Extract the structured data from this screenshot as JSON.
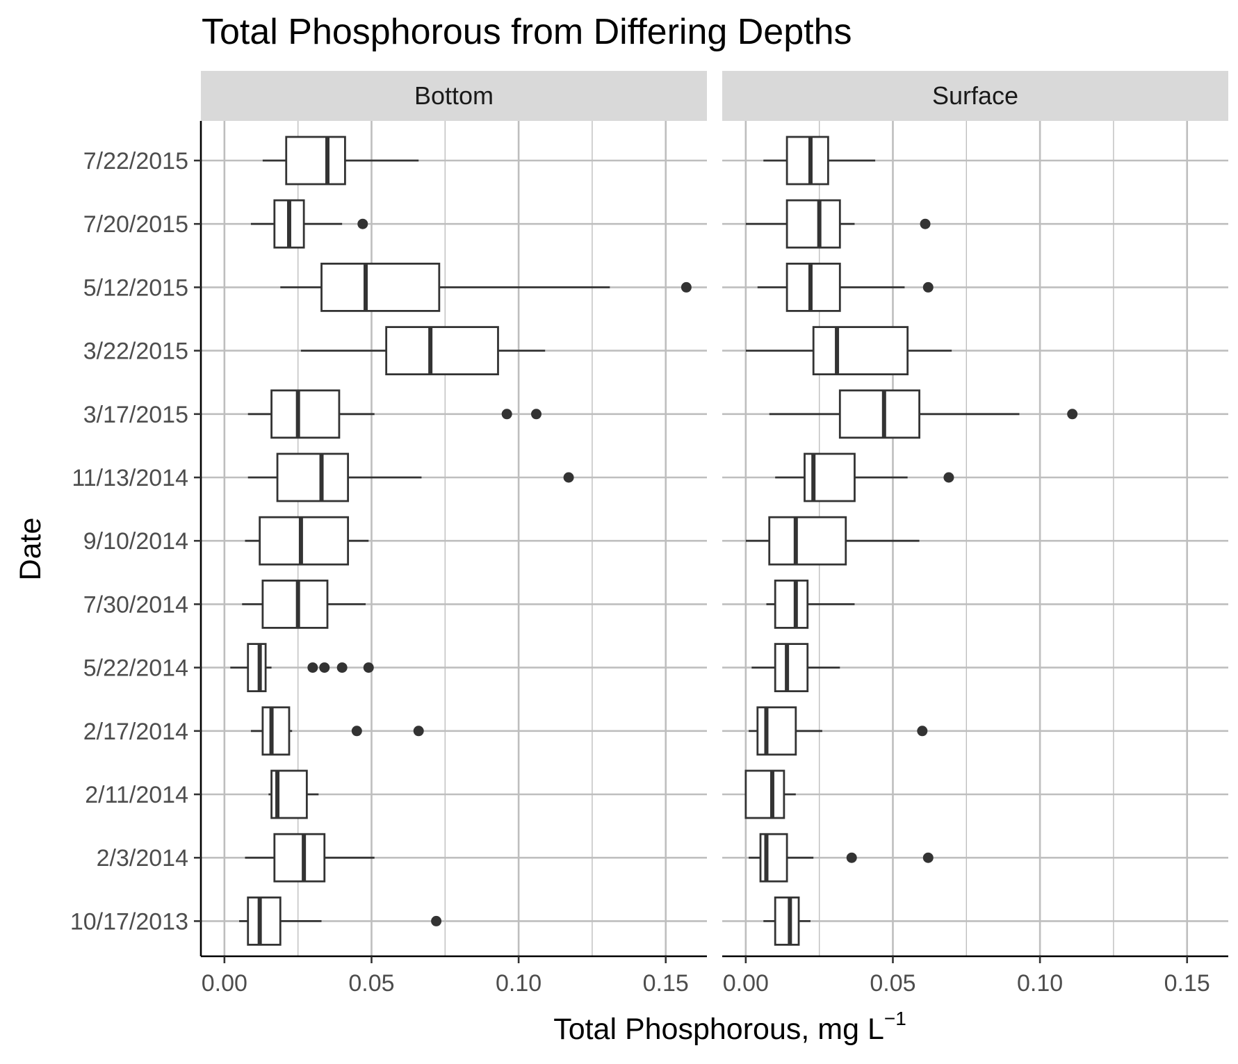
{
  "chart_data": {
    "type": "boxplot",
    "title": "Total Phosphorous from Differing Depths",
    "xlabel": "Total Phosphorous, mg L",
    "xlabel_superscript": "−1",
    "ylabel": "Date",
    "xlim": [
      -0.008,
      0.164
    ],
    "x_ticks": [
      0.0,
      0.05,
      0.1,
      0.15
    ],
    "x_tick_labels": [
      "0.00",
      "0.05",
      "0.10",
      "0.15"
    ],
    "categories": [
      "7/22/2015",
      "7/20/2015",
      "5/12/2015",
      "3/22/2015",
      "3/17/2015",
      "11/13/2014",
      "9/10/2014",
      "7/30/2014",
      "5/22/2014",
      "2/17/2014",
      "2/11/2014",
      "2/3/2014",
      "10/17/2013"
    ],
    "grid": true,
    "colors": {
      "box_stroke": "#333333",
      "grid": "#bebebe",
      "strip_fill": "#d9d9d9",
      "axis_line": "#000000"
    },
    "panels": [
      {
        "name": "Bottom",
        "boxes": [
          {
            "category": "7/22/2015",
            "whisker_low": 0.013,
            "q1": 0.021,
            "median": 0.035,
            "q3": 0.041,
            "whisker_high": 0.066,
            "outliers": []
          },
          {
            "category": "7/20/2015",
            "whisker_low": 0.009,
            "q1": 0.017,
            "median": 0.022,
            "q3": 0.027,
            "whisker_high": 0.04,
            "outliers": [
              0.047
            ]
          },
          {
            "category": "5/12/2015",
            "whisker_low": 0.019,
            "q1": 0.033,
            "median": 0.048,
            "q3": 0.073,
            "whisker_high": 0.131,
            "outliers": [
              0.157
            ]
          },
          {
            "category": "3/22/2015",
            "whisker_low": 0.026,
            "q1": 0.055,
            "median": 0.07,
            "q3": 0.093,
            "whisker_high": 0.109,
            "outliers": []
          },
          {
            "category": "3/17/2015",
            "whisker_low": 0.008,
            "q1": 0.016,
            "median": 0.025,
            "q3": 0.039,
            "whisker_high": 0.051,
            "outliers": [
              0.096,
              0.106
            ]
          },
          {
            "category": "11/13/2014",
            "whisker_low": 0.008,
            "q1": 0.018,
            "median": 0.033,
            "q3": 0.042,
            "whisker_high": 0.067,
            "outliers": [
              0.117
            ]
          },
          {
            "category": "9/10/2014",
            "whisker_low": 0.007,
            "q1": 0.012,
            "median": 0.026,
            "q3": 0.042,
            "whisker_high": 0.049,
            "outliers": []
          },
          {
            "category": "7/30/2014",
            "whisker_low": 0.006,
            "q1": 0.013,
            "median": 0.025,
            "q3": 0.035,
            "whisker_high": 0.048,
            "outliers": []
          },
          {
            "category": "5/22/2014",
            "whisker_low": 0.002,
            "q1": 0.008,
            "median": 0.012,
            "q3": 0.014,
            "whisker_high": 0.016,
            "outliers": [
              0.03,
              0.034,
              0.04,
              0.049
            ]
          },
          {
            "category": "2/17/2014",
            "whisker_low": 0.009,
            "q1": 0.013,
            "median": 0.016,
            "q3": 0.022,
            "whisker_high": 0.023,
            "outliers": [
              0.045,
              0.066
            ]
          },
          {
            "category": "2/11/2014",
            "whisker_low": 0.015,
            "q1": 0.016,
            "median": 0.018,
            "q3": 0.028,
            "whisker_high": 0.032,
            "outliers": []
          },
          {
            "category": "2/3/2014",
            "whisker_low": 0.007,
            "q1": 0.017,
            "median": 0.027,
            "q3": 0.034,
            "whisker_high": 0.051,
            "outliers": []
          },
          {
            "category": "10/17/2013",
            "whisker_low": 0.005,
            "q1": 0.008,
            "median": 0.012,
            "q3": 0.019,
            "whisker_high": 0.033,
            "outliers": [
              0.072
            ]
          }
        ]
      },
      {
        "name": "Surface",
        "boxes": [
          {
            "category": "7/22/2015",
            "whisker_low": 0.006,
            "q1": 0.014,
            "median": 0.022,
            "q3": 0.028,
            "whisker_high": 0.044,
            "outliers": []
          },
          {
            "category": "7/20/2015",
            "whisker_low": 0.0,
            "q1": 0.014,
            "median": 0.025,
            "q3": 0.032,
            "whisker_high": 0.037,
            "outliers": [
              0.061
            ]
          },
          {
            "category": "5/12/2015",
            "whisker_low": 0.004,
            "q1": 0.014,
            "median": 0.022,
            "q3": 0.032,
            "whisker_high": 0.054,
            "outliers": [
              0.062
            ]
          },
          {
            "category": "3/22/2015",
            "whisker_low": 0.0,
            "q1": 0.023,
            "median": 0.031,
            "q3": 0.055,
            "whisker_high": 0.07,
            "outliers": []
          },
          {
            "category": "3/17/2015",
            "whisker_low": 0.008,
            "q1": 0.032,
            "median": 0.047,
            "q3": 0.059,
            "whisker_high": 0.093,
            "outliers": [
              0.111
            ]
          },
          {
            "category": "11/13/2014",
            "whisker_low": 0.01,
            "q1": 0.02,
            "median": 0.023,
            "q3": 0.037,
            "whisker_high": 0.055,
            "outliers": [
              0.069
            ]
          },
          {
            "category": "9/10/2014",
            "whisker_low": 0.0,
            "q1": 0.008,
            "median": 0.017,
            "q3": 0.034,
            "whisker_high": 0.059,
            "outliers": []
          },
          {
            "category": "7/30/2014",
            "whisker_low": 0.007,
            "q1": 0.01,
            "median": 0.017,
            "q3": 0.021,
            "whisker_high": 0.037,
            "outliers": []
          },
          {
            "category": "5/22/2014",
            "whisker_low": 0.002,
            "q1": 0.01,
            "median": 0.014,
            "q3": 0.021,
            "whisker_high": 0.032,
            "outliers": []
          },
          {
            "category": "2/17/2014",
            "whisker_low": 0.001,
            "q1": 0.004,
            "median": 0.007,
            "q3": 0.017,
            "whisker_high": 0.026,
            "outliers": [
              0.06
            ]
          },
          {
            "category": "2/11/2014",
            "whisker_low": 0.0,
            "q1": 0.0,
            "median": 0.009,
            "q3": 0.013,
            "whisker_high": 0.017,
            "outliers": []
          },
          {
            "category": "2/3/2014",
            "whisker_low": 0.001,
            "q1": 0.005,
            "median": 0.007,
            "q3": 0.014,
            "whisker_high": 0.023,
            "outliers": [
              0.036,
              0.062
            ]
          },
          {
            "category": "10/17/2013",
            "whisker_low": 0.006,
            "q1": 0.01,
            "median": 0.015,
            "q3": 0.018,
            "whisker_high": 0.022,
            "outliers": []
          }
        ]
      }
    ]
  }
}
